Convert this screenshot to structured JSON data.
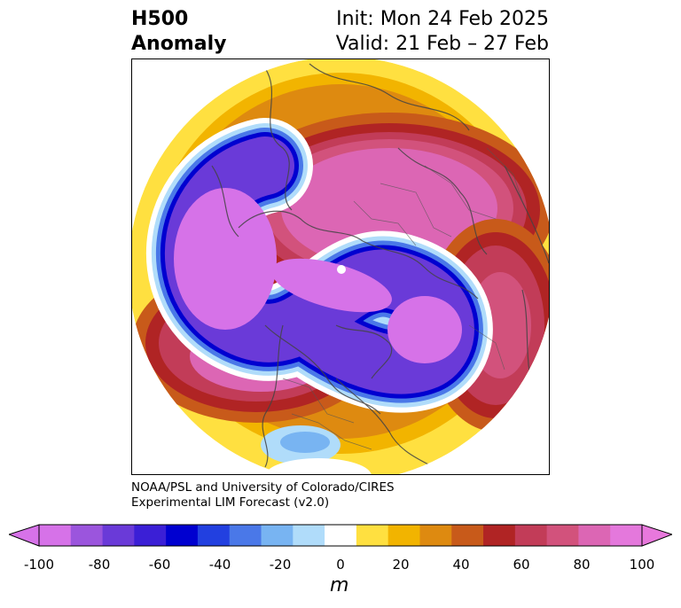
{
  "title": {
    "left_line1": "H500",
    "left_line2": "Anomaly",
    "right_line1": "Init: Mon 24 Feb 2025",
    "right_line2": "Valid: 21 Feb – 27 Feb"
  },
  "credit": {
    "line1": "NOAA/PSL and University of Colorado/CIRES",
    "line2": "Experimental LIM Forecast (v2.0)"
  },
  "colorbar": {
    "units": "m",
    "tick_labels": [
      "-100",
      "-80",
      "-60",
      "-40",
      "-20",
      "0",
      "20",
      "40",
      "60",
      "80",
      "100"
    ],
    "levels": [
      -100,
      -90,
      -80,
      -70,
      -60,
      -50,
      -40,
      -30,
      -20,
      -10,
      10,
      20,
      30,
      40,
      50,
      60,
      70,
      80,
      90,
      100
    ],
    "colors": [
      "#d672e8",
      "#9b55dd",
      "#6a3ad8",
      "#3b1fd6",
      "#0000d0",
      "#2240e0",
      "#4a78e8",
      "#78b4f2",
      "#b0dcfa",
      "#ffffff",
      "#ffe040",
      "#f2b400",
      "#de8a10",
      "#c85a1a",
      "#b02424",
      "#c23c58",
      "#d2527c",
      "#dc66b4",
      "#e478dc"
    ],
    "extend_low_color": "#d672e8",
    "extend_high_color": "#e878dc"
  },
  "map": {
    "projection": "north-polar-stereographic",
    "features": [
      "coastlines",
      "country-borders",
      "us-state-borders"
    ]
  }
}
